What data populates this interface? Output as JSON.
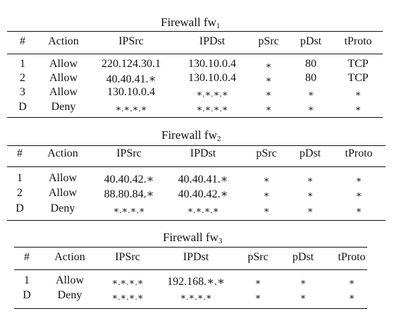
{
  "tables": [
    {
      "title": "Firewall fw",
      "subscript": "1",
      "headers": [
        "#",
        "Action",
        "IPSrc",
        "IPDst",
        "pSrc",
        "pDst",
        "tProto"
      ],
      "rows": [
        [
          "1",
          "Allow",
          "220.124.30.1",
          "130.10.0.4",
          "∗",
          "80",
          "TCP"
        ],
        [
          "2",
          "Allow",
          "40.40.41.∗",
          "130.10.0.4",
          "∗",
          "80",
          "TCP"
        ],
        [
          "3",
          "Allow",
          "130.10.0.4",
          "∗.∗.∗.∗",
          "∗",
          "∗",
          "∗"
        ],
        [
          "D",
          "Deny",
          "∗.∗.∗.∗",
          "∗.∗.∗.∗",
          "∗",
          "∗",
          "∗"
        ]
      ]
    },
    {
      "title": "Firewall fw",
      "subscript": "2",
      "headers": [
        "#",
        "Action",
        "IPSrc",
        "IPDst",
        "pSrc",
        "pDst",
        "tProto"
      ],
      "rows": [
        [
          "1",
          "Allow",
          "40.40.42.∗",
          "40.40.41.∗",
          "∗",
          "∗",
          "∗"
        ],
        [
          "2",
          "Allow",
          "88.80.84.∗",
          "40.40.42.∗",
          "∗",
          "∗",
          "∗"
        ],
        [
          "D",
          "Deny",
          "∗.∗.∗.∗",
          "∗.∗.∗.∗",
          "∗",
          "∗",
          "∗"
        ]
      ]
    },
    {
      "title": "Firewall fw",
      "subscript": "3",
      "headers": [
        "#",
        "Action",
        "IPSrc",
        "IPDst",
        "pSrc",
        "pDst",
        "tProto"
      ],
      "rows": [
        [
          "1",
          "Allow",
          "∗.∗.∗.∗",
          "192.168.∗.∗",
          "∗",
          "∗",
          "∗"
        ],
        [
          "D",
          "Deny",
          "∗.∗.∗.∗",
          "∗.∗.∗.∗",
          "∗",
          "∗",
          "∗"
        ]
      ]
    }
  ]
}
